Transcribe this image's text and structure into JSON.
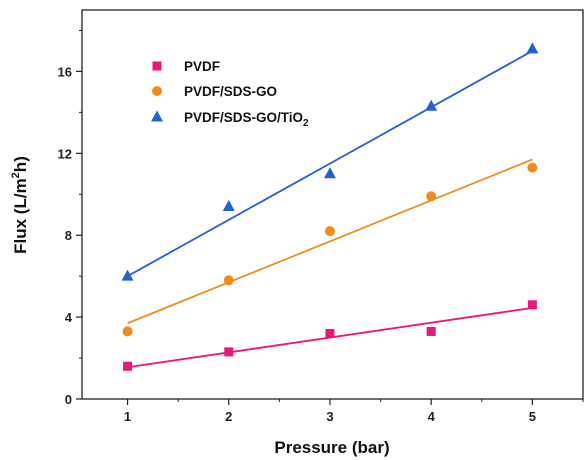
{
  "chart_data": {
    "type": "scatter",
    "title": "",
    "xlabel": "Pressure (bar)",
    "ylabel": {
      "main": "Flux (L/m",
      "sup": "2",
      "tail": "h)"
    },
    "xlim": [
      0.55,
      5.5
    ],
    "ylim": [
      0,
      19
    ],
    "xticks": [
      1,
      2,
      3,
      4,
      5
    ],
    "xticks_minor": [
      1.5,
      2.5,
      3.5,
      4.5,
      5.5
    ],
    "yticks": [
      0,
      4,
      8,
      12,
      16
    ],
    "yticks_minor": [
      2,
      6,
      10,
      14,
      18
    ],
    "grid": false,
    "legend_position": "top-left",
    "series": [
      {
        "name": "PVDF",
        "legend_parts": [
          {
            "t": "PVDF"
          }
        ],
        "marker": "square",
        "color": "#e8177a",
        "x": [
          1,
          2,
          3,
          4,
          5
        ],
        "y": [
          1.6,
          2.3,
          3.2,
          3.3,
          4.6
        ],
        "fit": [
          1.55,
          4.45
        ]
      },
      {
        "name": "PVDF/SDS-GO",
        "legend_parts": [
          {
            "t": "PVDF/SDS-GO"
          }
        ],
        "marker": "circle",
        "color": "#f08c1e",
        "x": [
          1,
          2,
          3,
          4,
          5
        ],
        "y": [
          3.3,
          5.8,
          8.2,
          9.9,
          11.3
        ],
        "fit": [
          3.7,
          11.7
        ]
      },
      {
        "name": "PVDF/SDS-GO/TiO2",
        "legend_parts": [
          {
            "t": "PVDF/SDS-GO/TiO"
          },
          {
            "t": "2",
            "sub": true
          }
        ],
        "marker": "triangle",
        "color": "#1f62d0",
        "x": [
          1,
          2,
          3,
          4,
          5
        ],
        "y": [
          6.0,
          9.4,
          11.0,
          14.3,
          17.1
        ],
        "fit": [
          6.0,
          17.0
        ]
      }
    ]
  }
}
